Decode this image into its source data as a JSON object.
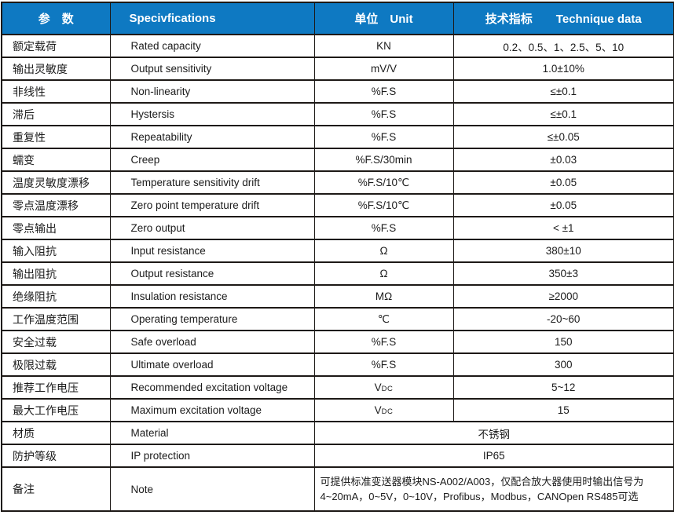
{
  "table": {
    "colors": {
      "header_bg": "#0e79c2",
      "border": "#1d1916",
      "text": "#1b1b1b",
      "header_text": "#ffffff"
    },
    "header": {
      "param": "参　数",
      "spec": "Specivfications",
      "unit": "单位　Unit",
      "data": "技术指标　　Technique data"
    },
    "rows": [
      {
        "cn": "额定载荷",
        "en": "Rated capacity",
        "unit": "KN",
        "value": "0.2、0.5、1、2.5、5、10"
      },
      {
        "cn": "输出灵敏度",
        "en": "Output sensitivity",
        "unit": "mV/V",
        "value": "1.0±10%"
      },
      {
        "cn": "非线性",
        "en": "Non-linearity",
        "unit": "%F.S",
        "value": "≤±0.1"
      },
      {
        "cn": "滞后",
        "en": "Hystersis",
        "unit": "%F.S",
        "value": "≤±0.1"
      },
      {
        "cn": "重复性",
        "en": "Repeatability",
        "unit": "%F.S",
        "value": "≤±0.05"
      },
      {
        "cn": "蠕变",
        "en": "Creep",
        "unit": "%F.S/30min",
        "value": "±0.03"
      },
      {
        "cn": "温度灵敏度漂移",
        "en": "Temperature sensitivity drift",
        "unit": "%F.S/10℃",
        "value": "±0.05"
      },
      {
        "cn": "零点温度漂移",
        "en": "Zero point temperature drift",
        "unit": "%F.S/10℃",
        "value": "±0.05"
      },
      {
        "cn": "零点输出",
        "en": "Zero output",
        "unit": "%F.S",
        "value": "< ±1"
      },
      {
        "cn": "输入阻抗",
        "en": "Input resistance",
        "unit": "Ω",
        "value": "380±10"
      },
      {
        "cn": "输出阻抗",
        "en": "Output resistance",
        "unit": "Ω",
        "value": "350±3"
      },
      {
        "cn": "绝缘阻抗",
        "en": "Insulation resistance",
        "unit": "MΩ",
        "value": "≥2000"
      },
      {
        "cn": "工作温度范围",
        "en": "Operating temperature",
        "unit": "℃",
        "value": "-20~60"
      },
      {
        "cn": "安全过载",
        "en": "Safe overload",
        "unit": "%F.S",
        "value": "150"
      },
      {
        "cn": "极限过载",
        "en": "Ultimate overload",
        "unit": "%F.S",
        "value": "300"
      },
      {
        "cn": "推荐工作电压",
        "en": "Recommended excitation voltage",
        "unit": "V",
        "unit_sub": "DC",
        "value": "5~12"
      },
      {
        "cn": "最大工作电压",
        "en": "Maximum excitation voltage",
        "unit": "V",
        "unit_sub": "DC",
        "value": "15"
      },
      {
        "cn": "材质",
        "en": "Material",
        "merged": true,
        "value": "不锈钢"
      },
      {
        "cn": "防护等级",
        "en": "IP protection",
        "merged": true,
        "value": "IP65"
      },
      {
        "cn": "备注",
        "en": "Note",
        "merged": true,
        "note": true,
        "value": "可提供标准变送器模块NS-A002/A003，仅配合放大器使用时输出信号为\n4~20mA，0~5V，0~10V，Profibus，Modbus，CANOpen RS485可选"
      }
    ]
  }
}
